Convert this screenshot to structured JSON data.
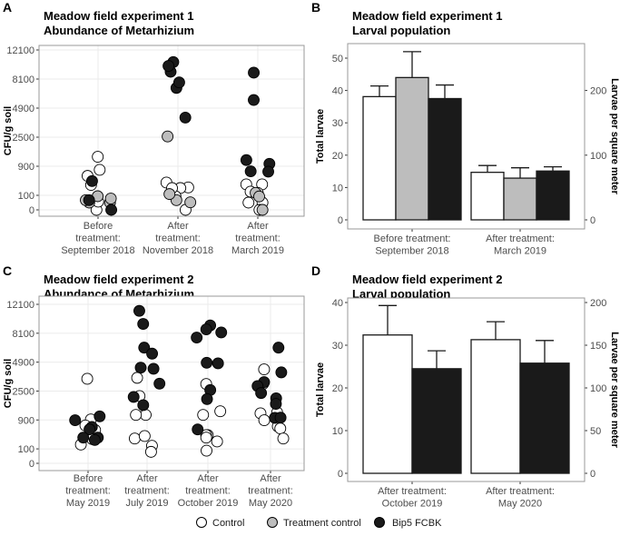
{
  "colors": {
    "Control": "#ffffff",
    "Treatment control": "#bdbdbd",
    "Bip5 FCBK": "#1a1a1a",
    "grid": "#ebebeb",
    "frame": "#999999"
  },
  "legend": [
    "Control",
    "Treatment control",
    "Bip5 FCBK"
  ],
  "chart_data": [
    {
      "panel": "A",
      "type": "scatter",
      "title": [
        "Meadow field experiment 1",
        "Abundance of Metarhizium"
      ],
      "ylabel": "CFU/g soil",
      "yscale": "sqrt",
      "yticks": [
        0,
        100,
        900,
        2500,
        4900,
        8100,
        12100
      ],
      "categories": [
        [
          "Before",
          "treatment:",
          "September 2018"
        ],
        [
          "After",
          "treatment:",
          "November 2018"
        ],
        [
          "After",
          "treatment:",
          "March 2019"
        ]
      ],
      "series": [
        {
          "name": "Control",
          "values": [
            [
              1333,
              760,
              546,
              293,
              0,
              32
            ],
            [
              353,
              238,
              225,
              88,
              225,
              0
            ],
            [
              307,
              307,
              137,
              157,
              25,
              25,
              0
            ]
          ]
        },
        {
          "name": "Treatment control",
          "values": [
            [
              88,
              25,
              45,
              25,
              60
            ],
            [
              2550,
              45,
              27,
              118
            ],
            [
              137,
              85,
              0
            ]
          ]
        },
        {
          "name": "Bip5 FCBK",
          "values": [
            [
              393,
              45,
              0
            ],
            [
              7040,
              9025,
              7690,
              10340,
              9800,
              4030
            ],
            [
              8910,
              5715,
              1172,
              1005,
              702,
              692
            ]
          ]
        }
      ]
    },
    {
      "panel": "B",
      "type": "bar",
      "title": [
        "Meadow field experiment 1",
        "Larval population"
      ],
      "ylabel": "Total larvae",
      "y2label": "Larvae per square meter",
      "yticks": [
        0,
        10,
        20,
        30,
        40,
        50
      ],
      "y2ticks": [
        0,
        100,
        200
      ],
      "y2factor": 5,
      "categories": [
        [
          "Before treatment:",
          "September 2018"
        ],
        [
          "After treatment:",
          "March 2019"
        ]
      ],
      "series": [
        {
          "name": "Control",
          "values": [
            38.1,
            14.7
          ],
          "err_upper": [
            41.4,
            16.8
          ]
        },
        {
          "name": "Treatment control",
          "values": [
            44.0,
            12.9
          ],
          "err_upper": [
            52.0,
            16.1
          ]
        },
        {
          "name": "Bip5 FCBK",
          "values": [
            37.5,
            15.1
          ],
          "err_upper": [
            41.7,
            16.4
          ]
        }
      ]
    },
    {
      "panel": "C",
      "type": "scatter",
      "title": [
        "Meadow field experiment 2",
        "Abundance of Metarhizium"
      ],
      "ylabel": "CFU/g soil",
      "yscale": "sqrt",
      "yticks": [
        0,
        100,
        900,
        2500,
        4900,
        8100,
        12100
      ],
      "categories": [
        [
          "Before",
          "treatment:",
          "May 2019"
        ],
        [
          "After",
          "treatment:",
          "July 2019"
        ],
        [
          "After",
          "treatment:",
          "October 2019"
        ],
        [
          "After",
          "treatment:",
          "May 2020"
        ]
      ],
      "series": [
        {
          "name": "Control",
          "values": [
            [
              3420,
              169,
              924,
              687,
              530,
              282
            ],
            [
              3500,
              2165,
              1125,
              1125,
              295,
              357,
              148,
              63
            ],
            [
              1300,
              1125,
              3015,
              380,
              380,
              228,
              77,
              317
            ],
            [
              4225,
              3040,
              1240,
              1197,
              888,
              655,
              582,
              295
            ]
          ]
        },
        {
          "name": "Bip5 FCBK",
          "values": [
            [
              1056,
              317,
              260,
              634,
              552,
              888,
              317
            ],
            [
              9300,
              11130,
              6410,
              5760,
              4280,
              4380,
              3040,
              2110,
              1620
            ],
            [
              9100,
              8590,
              7570,
              8200,
              4845,
              4785,
              2570,
              1975,
              550
            ],
            [
              6410,
              3960,
              3160,
              2860,
              2365,
              2025,
              1690,
              988,
              1000
            ]
          ]
        }
      ]
    },
    {
      "panel": "D",
      "type": "bar",
      "title": [
        "Meadow field experiment 2",
        "Larval population"
      ],
      "ylabel": "Total larvae",
      "y2label": "Larvae per square meter",
      "yticks": [
        0,
        10,
        20,
        30,
        40
      ],
      "y2ticks": [
        0,
        50,
        100,
        150,
        200
      ],
      "y2factor": 5,
      "categories": [
        [
          "After treatment:",
          "October 2019"
        ],
        [
          "After treatment:",
          "May 2020"
        ]
      ],
      "series": [
        {
          "name": "Control",
          "values": [
            32.4,
            31.3
          ],
          "err_upper": [
            39.3,
            35.5
          ]
        },
        {
          "name": "Bip5 FCBK",
          "values": [
            24.5,
            25.8
          ],
          "err_upper": [
            28.7,
            31.1
          ]
        }
      ]
    }
  ]
}
